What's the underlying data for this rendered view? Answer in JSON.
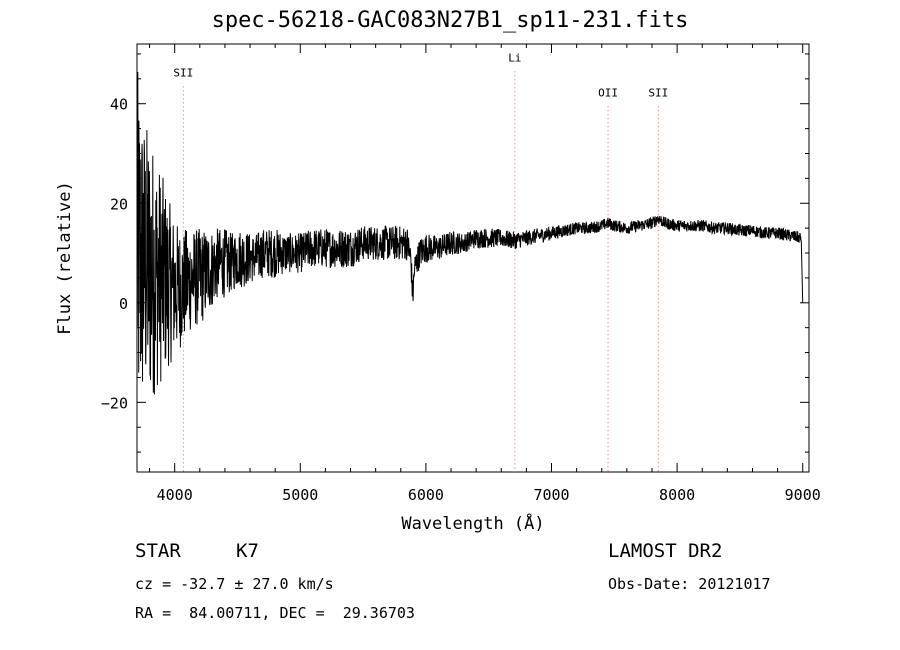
{
  "title": "spec-56218-GAC083N27B1_sp11-231.fits",
  "chart_data": {
    "type": "line",
    "xlabel": "Wavelength (Å)",
    "ylabel": "Flux (relative)",
    "xlim": [
      3700,
      9050
    ],
    "ylim": [
      -34,
      52
    ],
    "xticks": [
      4000,
      5000,
      6000,
      7000,
      8000,
      9000
    ],
    "yticks": [
      -20,
      0,
      20,
      40
    ],
    "grid": false,
    "series": [
      {
        "x": [
          3700,
          3750,
          3800,
          3850,
          3900,
          3950,
          4000,
          4050,
          4100,
          4150,
          4200,
          4250,
          4300,
          4350,
          4400,
          4450,
          4500,
          4550,
          4600,
          4650,
          4700,
          4800,
          4900,
          5000,
          5100,
          5200,
          5300,
          5400,
          5500,
          5600,
          5700,
          5800,
          5850,
          5880,
          5895,
          5910,
          5950,
          6000,
          6100,
          6200,
          6300,
          6400,
          6500,
          6600,
          6700,
          6800,
          6900,
          7000,
          7100,
          7200,
          7300,
          7400,
          7450,
          7500,
          7600,
          7700,
          7800,
          7850,
          7900,
          8000,
          8100,
          8200,
          8300,
          8400,
          8500,
          8600,
          8700,
          8800,
          8900,
          8990,
          9000
        ],
        "y": [
          10,
          8,
          7,
          6,
          5,
          4,
          3,
          3,
          4,
          5,
          5,
          6,
          7,
          8,
          8,
          8,
          9,
          9,
          9,
          9,
          10,
          10,
          10,
          10,
          11,
          11,
          11,
          11,
          12,
          12,
          12,
          12,
          12,
          9,
          1,
          7,
          10,
          11,
          11,
          12,
          12,
          13,
          13,
          13,
          12.5,
          13,
          13.5,
          14,
          14.5,
          15,
          15,
          15.5,
          16,
          15.5,
          15,
          15.5,
          16,
          17,
          16,
          15.5,
          15.5,
          15.5,
          15,
          15,
          14.5,
          14.5,
          14,
          14,
          13.5,
          13,
          0
        ],
        "noise": [
          38,
          30,
          28,
          24,
          21,
          17,
          14,
          12,
          11,
          10,
          10,
          9,
          8,
          7,
          7,
          6,
          6,
          6,
          5,
          5,
          5,
          5,
          4,
          4,
          4,
          4,
          4,
          4,
          3.5,
          3.5,
          3.5,
          3.5,
          3.5,
          3,
          3,
          3,
          3,
          3,
          2.5,
          2.5,
          2,
          2,
          2,
          1.8,
          1.8,
          1.6,
          1.5,
          1.4,
          1.3,
          1.2,
          1.2,
          1.2,
          1.2,
          1.2,
          1.2,
          1.2,
          1.2,
          1.2,
          1.2,
          1.2,
          1.2,
          1.2,
          1.2,
          1.2,
          1.2,
          1.2,
          1.2,
          1.2,
          1.2,
          1.2,
          0
        ]
      }
    ],
    "lines": [
      {
        "label": "SII",
        "x": 4069,
        "label_y": 45.5
      },
      {
        "label": "Li",
        "x": 6708,
        "label_y": 48.5
      },
      {
        "label": "OII",
        "x": 7450,
        "label_y": 41.5
      },
      {
        "label": "SII",
        "x": 7850,
        "label_y": 41.5
      }
    ]
  },
  "info": {
    "class": "STAR",
    "subclass": "K7",
    "survey": "LAMOST DR2",
    "cz": "cz = -32.7 ± 27.0 km/s",
    "obs_date": "Obs-Date: 20121017",
    "radec": "RA =  84.00711, DEC =  29.36703"
  }
}
